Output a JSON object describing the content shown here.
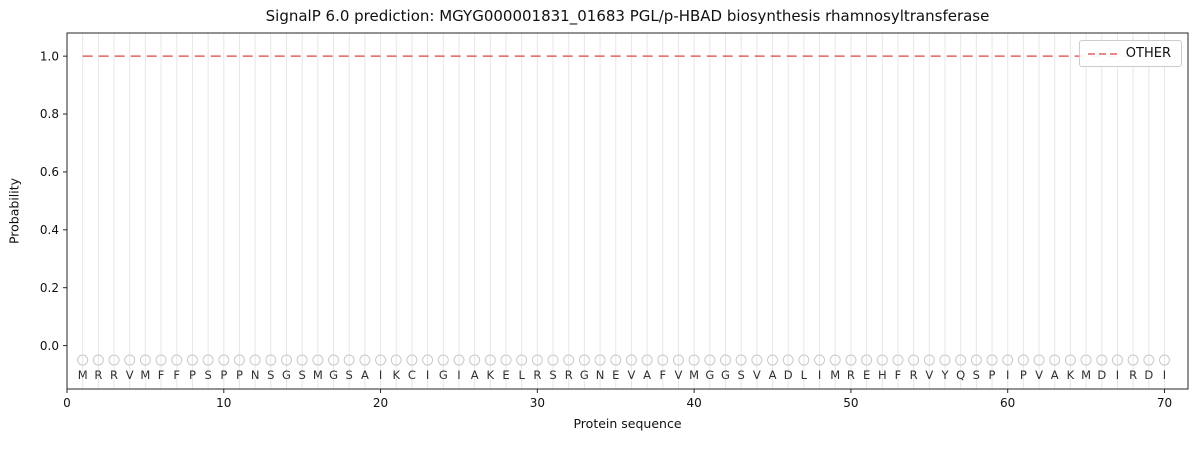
{
  "chart_data": {
    "type": "line",
    "title": "SignalP 6.0 prediction: MGYG000001831_01683 PGL/p-HBAD biosynthesis rhamnosyltransferase",
    "xlabel": "Protein sequence",
    "ylabel": "Probability",
    "xlim": [
      0,
      71.5
    ],
    "ylim": [
      -0.15,
      1.08
    ],
    "xticks": [
      0,
      10,
      20,
      30,
      40,
      50,
      60,
      70
    ],
    "yticks": [
      0,
      0.2,
      0.4,
      0.6,
      0.8,
      1.0
    ],
    "grid": "vertical gridline at every residue position 1-70",
    "legend": {
      "position": "upper right",
      "entries": [
        {
          "label": "OTHER",
          "color": "#e26060",
          "linestyle": "dashed"
        }
      ]
    },
    "series": [
      {
        "name": "OTHER",
        "color": "#e26060",
        "linestyle": "dashed",
        "x": [
          1,
          70
        ],
        "y": [
          1.0,
          1.0
        ]
      }
    ],
    "sequence": "MRRVMFFPSPPNSGSMGSAIKCIGIAKELRSRGNEVAFVMGGSVADLIMREHFRVYQSPIPVAKMDIRDI",
    "sequence_length": 70,
    "residue_markers": {
      "shape": "circle",
      "y": -0.05,
      "stroke": "#c9c9c9"
    },
    "letters_y": -0.115,
    "colors": {
      "grid": "#e7e7e7",
      "frame": "#262626",
      "tick_text": "#111111",
      "letters": "#303030"
    }
  }
}
